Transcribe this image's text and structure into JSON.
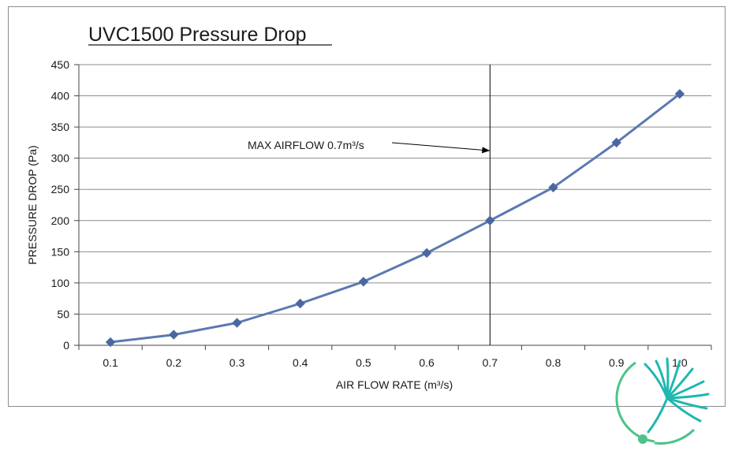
{
  "chart_data": {
    "type": "line",
    "title": "UVC1500 Pressure Drop",
    "xlabel": "AIR FLOW RATE (m³/s)",
    "ylabel": "PRESSURE DROP (Pa)",
    "x": [
      0.1,
      0.2,
      0.3,
      0.4,
      0.5,
      0.6,
      0.7,
      0.8,
      0.9,
      1.0
    ],
    "x_tick_labels": [
      "0.1",
      "0.2",
      "0.3",
      "0.4",
      "0.5",
      "0.6",
      "0.7",
      "0.8",
      "0.9",
      "1.0"
    ],
    "y_ticks": [
      0,
      50,
      100,
      150,
      200,
      250,
      300,
      350,
      400,
      450
    ],
    "ylim": [
      0,
      450
    ],
    "grid": "horizontal",
    "series": [
      {
        "values": [
          5,
          17,
          36,
          67,
          102,
          148,
          200,
          253,
          325,
          403
        ]
      }
    ],
    "annotation": {
      "text": "MAX AIRFLOW 0.7m³/s",
      "x": 0.7,
      "arrow_target_y": 312
    },
    "colors": {
      "series": "#5b79b2",
      "marker": "#4a67a0",
      "grid": "#8c8c8c",
      "logo_teal": "#1fb7b0",
      "logo_green": "#4cc38a"
    }
  }
}
